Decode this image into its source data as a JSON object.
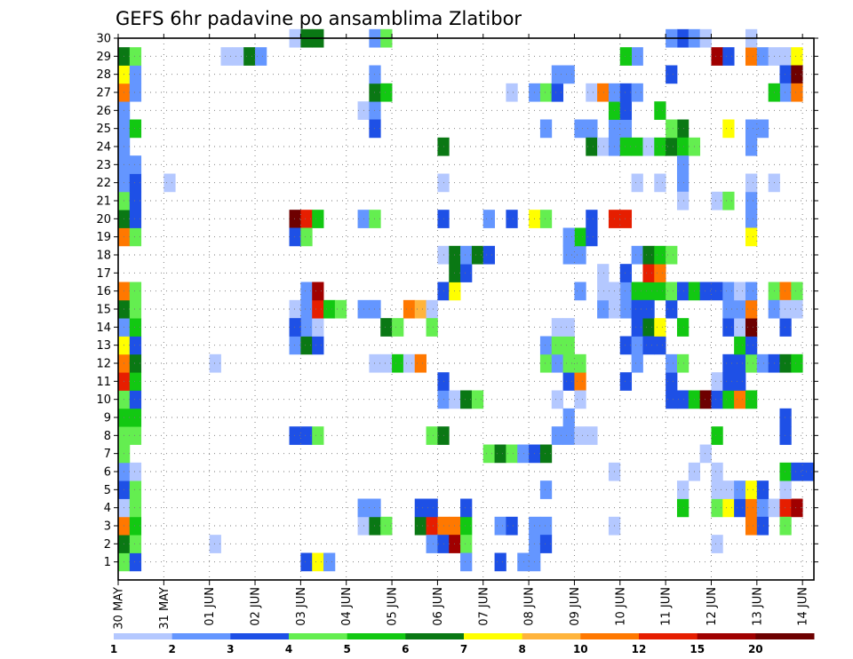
{
  "chart_data": {
    "type": "heatmap",
    "title": "GEFS 6hr padavine po ansamblima Zlatibor",
    "x_tick_labels": [
      "30 MAY",
      "31 MAY",
      "01 JUN",
      "02 JUN",
      "03 JUN",
      "04 JUN",
      "05 JUN",
      "06 JUN",
      "07 JUN",
      "08 JUN",
      "09 JUN",
      "10 JUN",
      "11 JUN",
      "12 JUN",
      "13 JUN",
      "14 JUN"
    ],
    "y_tick_labels": [
      "1",
      "2",
      "3",
      "4",
      "5",
      "6",
      "7",
      "8",
      "9",
      "10",
      "11",
      "12",
      "13",
      "14",
      "15",
      "16",
      "17",
      "18",
      "19",
      "20",
      "21",
      "22",
      "23",
      "24",
      "25",
      "26",
      "27",
      "28",
      "29",
      "30"
    ],
    "y_range": [
      0,
      30
    ],
    "x_range": [
      0,
      61
    ],
    "grid": true,
    "colorbar": {
      "labels": [
        "1",
        "2",
        "3",
        "4",
        "5",
        "6",
        "7",
        "8",
        "10",
        "12",
        "15",
        "20"
      ],
      "colors": [
        "#b4c8ff",
        "#6496ff",
        "#1e50e6",
        "#64ee50",
        "#12c812",
        "#0a7814",
        "#ffff00",
        "#ffb43c",
        "#ff7800",
        "#e61e00",
        "#a00000",
        "#6e0000"
      ]
    },
    "cells": [
      [
        1,
        1,
        4
      ],
      [
        2,
        1,
        3
      ],
      [
        1,
        2,
        6
      ],
      [
        2,
        2,
        4
      ],
      [
        1,
        3,
        9
      ],
      [
        2,
        3,
        5
      ],
      [
        1,
        4,
        1
      ],
      [
        2,
        4,
        4
      ],
      [
        1,
        5,
        3
      ],
      [
        2,
        5,
        4
      ],
      [
        1,
        6,
        2
      ],
      [
        2,
        6,
        1
      ],
      [
        1,
        7,
        4
      ],
      [
        1,
        8,
        4
      ],
      [
        2,
        8,
        4
      ],
      [
        1,
        9,
        5
      ],
      [
        2,
        9,
        5
      ],
      [
        1,
        10,
        4
      ],
      [
        2,
        10,
        3
      ],
      [
        1,
        11,
        10
      ],
      [
        2,
        11,
        5
      ],
      [
        1,
        12,
        9
      ],
      [
        2,
        12,
        6
      ],
      [
        1,
        13,
        7
      ],
      [
        2,
        13,
        3
      ],
      [
        1,
        14,
        2
      ],
      [
        2,
        14,
        5
      ],
      [
        1,
        15,
        6
      ],
      [
        2,
        15,
        4
      ],
      [
        1,
        16,
        9
      ],
      [
        2,
        16,
        4
      ],
      [
        1,
        19,
        9
      ],
      [
        2,
        19,
        4
      ],
      [
        1,
        20,
        6
      ],
      [
        2,
        20,
        3
      ],
      [
        1,
        21,
        4
      ],
      [
        2,
        21,
        3
      ],
      [
        1,
        22,
        2
      ],
      [
        2,
        22,
        3
      ],
      [
        1,
        23,
        2
      ],
      [
        2,
        23,
        2
      ],
      [
        1,
        24,
        2
      ],
      [
        1,
        25,
        2
      ],
      [
        2,
        25,
        5
      ],
      [
        1,
        26,
        2
      ],
      [
        1,
        27,
        9
      ],
      [
        2,
        27,
        2
      ],
      [
        1,
        28,
        7
      ],
      [
        2,
        28,
        2
      ],
      [
        1,
        29,
        6
      ],
      [
        2,
        29,
        4
      ],
      [
        5,
        22,
        1
      ],
      [
        9,
        2,
        1
      ],
      [
        9,
        12,
        1
      ],
      [
        10,
        29,
        1
      ],
      [
        11,
        29,
        1
      ],
      [
        12,
        29,
        6
      ],
      [
        13,
        29,
        2
      ],
      [
        17,
        1,
        3
      ],
      [
        18,
        1,
        7
      ],
      [
        19,
        1,
        2
      ],
      [
        16,
        8,
        3
      ],
      [
        17,
        8,
        3
      ],
      [
        18,
        8,
        4
      ],
      [
        16,
        13,
        2
      ],
      [
        17,
        13,
        6
      ],
      [
        18,
        13,
        3
      ],
      [
        17,
        14,
        2
      ],
      [
        18,
        14,
        1
      ],
      [
        16,
        15,
        1
      ],
      [
        17,
        15,
        2
      ],
      [
        18,
        15,
        10
      ],
      [
        19,
        15,
        5
      ],
      [
        20,
        15,
        4
      ],
      [
        17,
        16,
        2
      ],
      [
        18,
        16,
        11
      ],
      [
        16,
        20,
        12
      ],
      [
        17,
        20,
        10
      ],
      [
        18,
        20,
        5
      ],
      [
        16,
        19,
        3
      ],
      [
        17,
        19,
        4
      ],
      [
        16,
        14,
        3
      ],
      [
        16,
        30,
        1
      ],
      [
        17,
        30,
        6
      ],
      [
        18,
        30,
        6
      ],
      [
        22,
        3,
        1
      ],
      [
        23,
        3,
        6
      ],
      [
        24,
        3,
        4
      ],
      [
        22,
        4,
        2
      ],
      [
        23,
        4,
        2
      ],
      [
        23,
        12,
        1
      ],
      [
        24,
        12,
        1
      ],
      [
        25,
        12,
        5
      ],
      [
        26,
        12,
        1
      ],
      [
        27,
        12,
        9
      ],
      [
        22,
        15,
        2
      ],
      [
        23,
        15,
        2
      ],
      [
        24,
        14,
        6
      ],
      [
        25,
        14,
        4
      ],
      [
        22,
        20,
        2
      ],
      [
        23,
        20,
        4
      ],
      [
        22,
        26,
        1
      ],
      [
        23,
        26,
        2
      ],
      [
        23,
        27,
        6
      ],
      [
        24,
        27,
        5
      ],
      [
        23,
        25,
        3
      ],
      [
        23,
        28,
        2
      ],
      [
        23,
        30,
        2
      ],
      [
        24,
        30,
        4
      ],
      [
        27,
        3,
        6
      ],
      [
        28,
        3,
        10
      ],
      [
        29,
        3,
        9
      ],
      [
        30,
        3,
        9
      ],
      [
        31,
        3,
        5
      ],
      [
        27,
        4,
        3
      ],
      [
        28,
        4,
        3
      ],
      [
        31,
        4,
        3
      ],
      [
        28,
        2,
        2
      ],
      [
        29,
        2,
        3
      ],
      [
        30,
        2,
        11
      ],
      [
        31,
        2,
        4
      ],
      [
        31,
        1,
        2
      ],
      [
        28,
        8,
        4
      ],
      [
        29,
        8,
        6
      ],
      [
        29,
        10,
        2
      ],
      [
        30,
        10,
        1
      ],
      [
        31,
        10,
        6
      ],
      [
        32,
        10,
        4
      ],
      [
        29,
        11,
        3
      ],
      [
        29,
        16,
        3
      ],
      [
        30,
        16,
        7
      ],
      [
        30,
        17,
        6
      ],
      [
        31,
        17,
        3
      ],
      [
        29,
        18,
        1
      ],
      [
        30,
        18,
        6
      ],
      [
        31,
        18,
        2
      ],
      [
        32,
        18,
        6
      ],
      [
        33,
        18,
        3
      ],
      [
        26,
        15,
        9
      ],
      [
        27,
        15,
        8
      ],
      [
        28,
        15,
        1
      ],
      [
        28,
        14,
        4
      ],
      [
        29,
        20,
        3
      ],
      [
        29,
        22,
        1
      ],
      [
        29,
        24,
        6
      ],
      [
        33,
        7,
        4
      ],
      [
        34,
        7,
        6
      ],
      [
        35,
        7,
        4
      ],
      [
        36,
        7,
        2
      ],
      [
        37,
        7,
        3
      ],
      [
        38,
        7,
        6
      ],
      [
        34,
        3,
        2
      ],
      [
        35,
        3,
        3
      ],
      [
        37,
        3,
        2
      ],
      [
        38,
        3,
        2
      ],
      [
        34,
        1,
        3
      ],
      [
        36,
        1,
        2
      ],
      [
        37,
        1,
        2
      ],
      [
        37,
        2,
        2
      ],
      [
        38,
        2,
        3
      ],
      [
        38,
        5,
        2
      ],
      [
        33,
        20,
        2
      ],
      [
        35,
        20,
        3
      ],
      [
        37,
        20,
        7
      ],
      [
        38,
        20,
        4
      ],
      [
        35,
        27,
        1
      ],
      [
        37,
        27,
        2
      ],
      [
        38,
        27,
        4
      ],
      [
        39,
        27,
        3
      ],
      [
        38,
        25,
        2
      ],
      [
        38,
        12,
        4
      ],
      [
        39,
        12,
        2
      ],
      [
        38,
        13,
        2
      ],
      [
        39,
        13,
        4
      ],
      [
        40,
        13,
        4
      ],
      [
        40,
        11,
        3
      ],
      [
        41,
        11,
        9
      ],
      [
        40,
        12,
        4
      ],
      [
        41,
        12,
        4
      ],
      [
        41,
        10,
        1
      ],
      [
        39,
        10,
        1
      ],
      [
        40,
        9,
        2
      ],
      [
        39,
        8,
        2
      ],
      [
        40,
        8,
        2
      ],
      [
        41,
        8,
        1
      ],
      [
        42,
        8,
        1
      ],
      [
        39,
        14,
        1
      ],
      [
        40,
        14,
        1
      ],
      [
        39,
        27,
        3
      ],
      [
        39,
        28,
        2
      ],
      [
        40,
        28,
        2
      ],
      [
        40,
        18,
        2
      ],
      [
        41,
        18,
        2
      ],
      [
        41,
        19,
        5
      ],
      [
        42,
        19,
        3
      ],
      [
        42,
        20,
        3
      ],
      [
        40,
        19,
        2
      ],
      [
        41,
        16,
        2
      ],
      [
        41,
        25,
        2
      ],
      [
        42,
        25,
        2
      ],
      [
        42,
        24,
        6
      ],
      [
        43,
        24,
        1
      ],
      [
        42,
        27,
        1
      ],
      [
        43,
        27,
        9
      ],
      [
        44,
        25,
        2
      ],
      [
        45,
        25,
        2
      ],
      [
        44,
        24,
        2
      ],
      [
        45,
        24,
        5
      ],
      [
        46,
        24,
        5
      ],
      [
        47,
        24,
        1
      ],
      [
        48,
        24,
        5
      ],
      [
        49,
        24,
        6
      ],
      [
        44,
        26,
        5
      ],
      [
        45,
        26,
        3
      ],
      [
        44,
        27,
        2
      ],
      [
        45,
        27,
        3
      ],
      [
        46,
        27,
        2
      ],
      [
        45,
        13,
        3
      ],
      [
        46,
        13,
        2
      ],
      [
        46,
        14,
        3
      ],
      [
        45,
        16,
        2
      ],
      [
        46,
        16,
        5
      ],
      [
        47,
        16,
        5
      ],
      [
        48,
        16,
        5
      ],
      [
        45,
        17,
        3
      ],
      [
        47,
        17,
        10
      ],
      [
        48,
        17,
        9
      ],
      [
        45,
        15,
        2
      ],
      [
        46,
        15,
        3
      ],
      [
        46,
        29,
        2
      ],
      [
        45,
        29,
        5
      ],
      [
        43,
        15,
        2
      ],
      [
        44,
        15,
        1
      ],
      [
        43,
        16,
        1
      ],
      [
        44,
        16,
        1
      ],
      [
        43,
        17,
        1
      ],
      [
        46,
        12,
        2
      ],
      [
        45,
        11,
        3
      ],
      [
        44,
        20,
        10
      ],
      [
        45,
        20,
        10
      ],
      [
        46,
        18,
        2
      ],
      [
        47,
        18,
        6
      ],
      [
        48,
        18,
        5
      ],
      [
        49,
        18,
        4
      ],
      [
        47,
        14,
        6
      ],
      [
        47,
        13,
        3
      ],
      [
        48,
        13,
        3
      ],
      [
        47,
        15,
        3
      ],
      [
        49,
        15,
        3
      ],
      [
        48,
        14,
        7
      ],
      [
        44,
        6,
        1
      ],
      [
        44,
        3,
        1
      ],
      [
        48,
        26,
        5
      ],
      [
        50,
        25,
        6
      ],
      [
        49,
        25,
        4
      ],
      [
        50,
        24,
        5
      ],
      [
        51,
        24,
        4
      ],
      [
        50,
        23,
        2
      ],
      [
        50,
        30,
        3
      ],
      [
        51,
        30,
        2
      ],
      [
        52,
        30,
        1
      ],
      [
        49,
        30,
        2
      ],
      [
        46,
        22,
        1
      ],
      [
        48,
        22,
        1
      ],
      [
        50,
        22,
        2
      ],
      [
        50,
        21,
        1
      ],
      [
        49,
        10,
        3
      ],
      [
        50,
        10,
        3
      ],
      [
        49,
        11,
        3
      ],
      [
        49,
        12,
        2
      ],
      [
        50,
        12,
        4
      ],
      [
        49,
        16,
        4
      ],
      [
        50,
        16,
        3
      ],
      [
        51,
        16,
        5
      ],
      [
        52,
        16,
        3
      ],
      [
        50,
        14,
        5
      ],
      [
        49,
        28,
        3
      ],
      [
        50,
        4,
        5
      ],
      [
        51,
        6,
        1
      ],
      [
        50,
        5,
        1
      ],
      [
        51,
        10,
        5
      ],
      [
        52,
        10,
        12
      ],
      [
        53,
        10,
        3
      ],
      [
        54,
        10,
        5
      ],
      [
        55,
        10,
        9
      ],
      [
        56,
        10,
        5
      ],
      [
        53,
        11,
        1
      ],
      [
        54,
        11,
        3
      ],
      [
        55,
        11,
        3
      ],
      [
        54,
        12,
        3
      ],
      [
        55,
        12,
        3
      ],
      [
        56,
        12,
        4
      ],
      [
        55,
        13,
        5
      ],
      [
        56,
        13,
        3
      ],
      [
        54,
        14,
        3
      ],
      [
        55,
        14,
        1
      ],
      [
        56,
        14,
        12
      ],
      [
        54,
        15,
        2
      ],
      [
        55,
        15,
        2
      ],
      [
        56,
        15,
        9
      ],
      [
        53,
        16,
        3
      ],
      [
        54,
        16,
        2
      ],
      [
        55,
        16,
        1
      ],
      [
        56,
        16,
        2
      ],
      [
        58,
        16,
        4
      ],
      [
        59,
        16,
        9
      ],
      [
        60,
        16,
        4
      ],
      [
        57,
        12,
        2
      ],
      [
        58,
        12,
        3
      ],
      [
        59,
        12,
        6
      ],
      [
        60,
        12,
        5
      ],
      [
        59,
        14,
        3
      ],
      [
        58,
        15,
        2
      ],
      [
        59,
        15,
        1
      ],
      [
        53,
        4,
        4
      ],
      [
        54,
        4,
        7
      ],
      [
        55,
        4,
        3
      ],
      [
        56,
        4,
        9
      ],
      [
        57,
        4,
        2
      ],
      [
        58,
        4,
        1
      ],
      [
        59,
        4,
        10
      ],
      [
        60,
        4,
        11
      ],
      [
        53,
        5,
        1
      ],
      [
        54,
        5,
        1
      ],
      [
        55,
        5,
        2
      ],
      [
        56,
        5,
        7
      ],
      [
        57,
        5,
        3
      ],
      [
        59,
        5,
        1
      ],
      [
        56,
        3,
        9
      ],
      [
        57,
        3,
        3
      ],
      [
        59,
        3,
        4
      ],
      [
        53,
        2,
        1
      ],
      [
        53,
        6,
        1
      ],
      [
        59,
        6,
        5
      ],
      [
        60,
        6,
        3
      ],
      [
        53,
        8,
        5
      ],
      [
        59,
        8,
        3
      ],
      [
        59,
        9,
        3
      ],
      [
        52,
        7,
        1
      ],
      [
        56,
        24,
        2
      ],
      [
        56,
        20,
        2
      ],
      [
        56,
        21,
        2
      ],
      [
        56,
        22,
        1
      ],
      [
        58,
        22,
        1
      ],
      [
        54,
        25,
        7
      ],
      [
        56,
        25,
        2
      ],
      [
        57,
        25,
        2
      ],
      [
        53,
        21,
        1
      ],
      [
        54,
        21,
        4
      ],
      [
        53,
        29,
        11
      ],
      [
        54,
        29,
        3
      ],
      [
        56,
        29,
        9
      ],
      [
        57,
        29,
        2
      ],
      [
        58,
        29,
        1
      ],
      [
        59,
        29,
        1
      ],
      [
        60,
        29,
        7
      ],
      [
        59,
        28,
        3
      ],
      [
        60,
        28,
        12
      ],
      [
        59,
        27,
        2
      ],
      [
        60,
        27,
        9
      ],
      [
        58,
        27,
        5
      ],
      [
        56,
        30,
        1
      ],
      [
        56,
        19,
        7
      ],
      [
        60,
        15,
        1
      ],
      [
        61,
        6,
        3
      ]
    ]
  }
}
